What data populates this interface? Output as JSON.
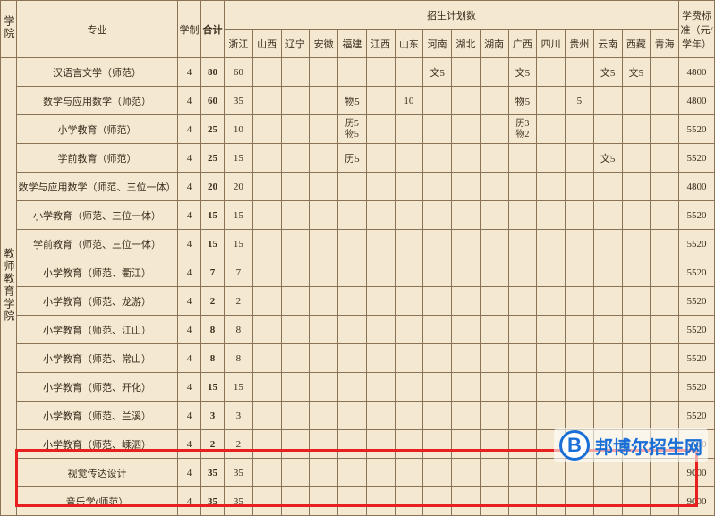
{
  "headers": {
    "college": "学院",
    "major": "专业",
    "system": "学制",
    "total": "合计",
    "plan_group": "招生计划数",
    "fee": "学费标准（元/学年）",
    "provinces": [
      "浙江",
      "山西",
      "辽宁",
      "安徽",
      "福建",
      "江西",
      "山东",
      "河南",
      "湖北",
      "湖南",
      "广西",
      "四川",
      "贵州",
      "云南",
      "西藏",
      "青海"
    ]
  },
  "college_name": "教师教育学院",
  "rows": [
    {
      "major": "汉语言文学（师范）",
      "system": "4",
      "total": "80",
      "cells": [
        "60",
        "",
        "",
        "",
        "",
        "",
        "",
        "文5",
        "",
        "",
        "文5",
        "",
        "",
        "文5",
        "文5",
        ""
      ],
      "fee": "4800"
    },
    {
      "major": "数学与应用数学（师范）",
      "system": "4",
      "total": "60",
      "cells": [
        "35",
        "",
        "",
        "",
        "物5",
        "",
        "10",
        "",
        "",
        "",
        "物5",
        "",
        "5",
        "",
        "",
        ""
      ],
      "fee": "4800"
    },
    {
      "major": "小学教育（师范）",
      "system": "4",
      "total": "25",
      "cells": [
        "10",
        "",
        "",
        "",
        "历5\n物5",
        "",
        "",
        "",
        "",
        "",
        "历3\n物2",
        "",
        "",
        "",
        "",
        ""
      ],
      "fee": "5520"
    },
    {
      "major": "学前教育（师范）",
      "system": "4",
      "total": "25",
      "cells": [
        "15",
        "",
        "",
        "",
        "历5",
        "",
        "",
        "",
        "",
        "",
        "",
        "",
        "",
        "文5",
        "",
        ""
      ],
      "fee": "5520"
    },
    {
      "major": "数学与应用数学（师范、三位一体）",
      "system": "4",
      "total": "20",
      "cells": [
        "20",
        "",
        "",
        "",
        "",
        "",
        "",
        "",
        "",
        "",
        "",
        "",
        "",
        "",
        "",
        ""
      ],
      "fee": "4800"
    },
    {
      "major": "小学教育（师范、三位一体）",
      "system": "4",
      "total": "15",
      "cells": [
        "15",
        "",
        "",
        "",
        "",
        "",
        "",
        "",
        "",
        "",
        "",
        "",
        "",
        "",
        "",
        ""
      ],
      "fee": "5520"
    },
    {
      "major": "学前教育（师范、三位一体）",
      "system": "4",
      "total": "15",
      "cells": [
        "15",
        "",
        "",
        "",
        "",
        "",
        "",
        "",
        "",
        "",
        "",
        "",
        "",
        "",
        "",
        ""
      ],
      "fee": "5520"
    },
    {
      "major": "小学教育（师范、衢江）",
      "system": "4",
      "total": "7",
      "cells": [
        "7",
        "",
        "",
        "",
        "",
        "",
        "",
        "",
        "",
        "",
        "",
        "",
        "",
        "",
        "",
        ""
      ],
      "fee": "5520"
    },
    {
      "major": "小学教育（师范、龙游）",
      "system": "4",
      "total": "2",
      "cells": [
        "2",
        "",
        "",
        "",
        "",
        "",
        "",
        "",
        "",
        "",
        "",
        "",
        "",
        "",
        "",
        ""
      ],
      "fee": "5520"
    },
    {
      "major": "小学教育（师范、江山）",
      "system": "4",
      "total": "8",
      "cells": [
        "8",
        "",
        "",
        "",
        "",
        "",
        "",
        "",
        "",
        "",
        "",
        "",
        "",
        "",
        "",
        ""
      ],
      "fee": "5520"
    },
    {
      "major": "小学教育（师范、常山）",
      "system": "4",
      "total": "8",
      "cells": [
        "8",
        "",
        "",
        "",
        "",
        "",
        "",
        "",
        "",
        "",
        "",
        "",
        "",
        "",
        "",
        ""
      ],
      "fee": "5520"
    },
    {
      "major": "小学教育（师范、开化）",
      "system": "4",
      "total": "15",
      "cells": [
        "15",
        "",
        "",
        "",
        "",
        "",
        "",
        "",
        "",
        "",
        "",
        "",
        "",
        "",
        "",
        ""
      ],
      "fee": "5520"
    },
    {
      "major": "小学教育（师范、兰溪）",
      "system": "4",
      "total": "3",
      "cells": [
        "3",
        "",
        "",
        "",
        "",
        "",
        "",
        "",
        "",
        "",
        "",
        "",
        "",
        "",
        "",
        ""
      ],
      "fee": "5520"
    },
    {
      "major": "小学教育（师范、嵊泗）",
      "system": "4",
      "total": "2",
      "cells": [
        "2",
        "",
        "",
        "",
        "",
        "",
        "",
        "",
        "",
        "",
        "",
        "",
        "",
        "",
        "",
        ""
      ],
      "fee": "5520"
    },
    {
      "major": "视觉传达设计",
      "system": "4",
      "total": "35",
      "cells": [
        "35",
        "",
        "",
        "",
        "",
        "",
        "",
        "",
        "",
        "",
        "",
        "",
        "",
        "",
        "",
        ""
      ],
      "fee": "9000"
    },
    {
      "major": "音乐学(师范）",
      "system": "4",
      "total": "35",
      "cells": [
        "35",
        "",
        "",
        "",
        "",
        "",
        "",
        "",
        "",
        "",
        "",
        "",
        "",
        "",
        "",
        ""
      ],
      "fee": "9000"
    }
  ],
  "watermark": {
    "logo_letter": "B",
    "text": "邦博尔招生网"
  },
  "colors": {
    "bg": "#f5e8d0",
    "border": "#8b7355",
    "text": "#3a2f1f",
    "highlight": "#e82020",
    "brand": "#1a6fd6"
  }
}
